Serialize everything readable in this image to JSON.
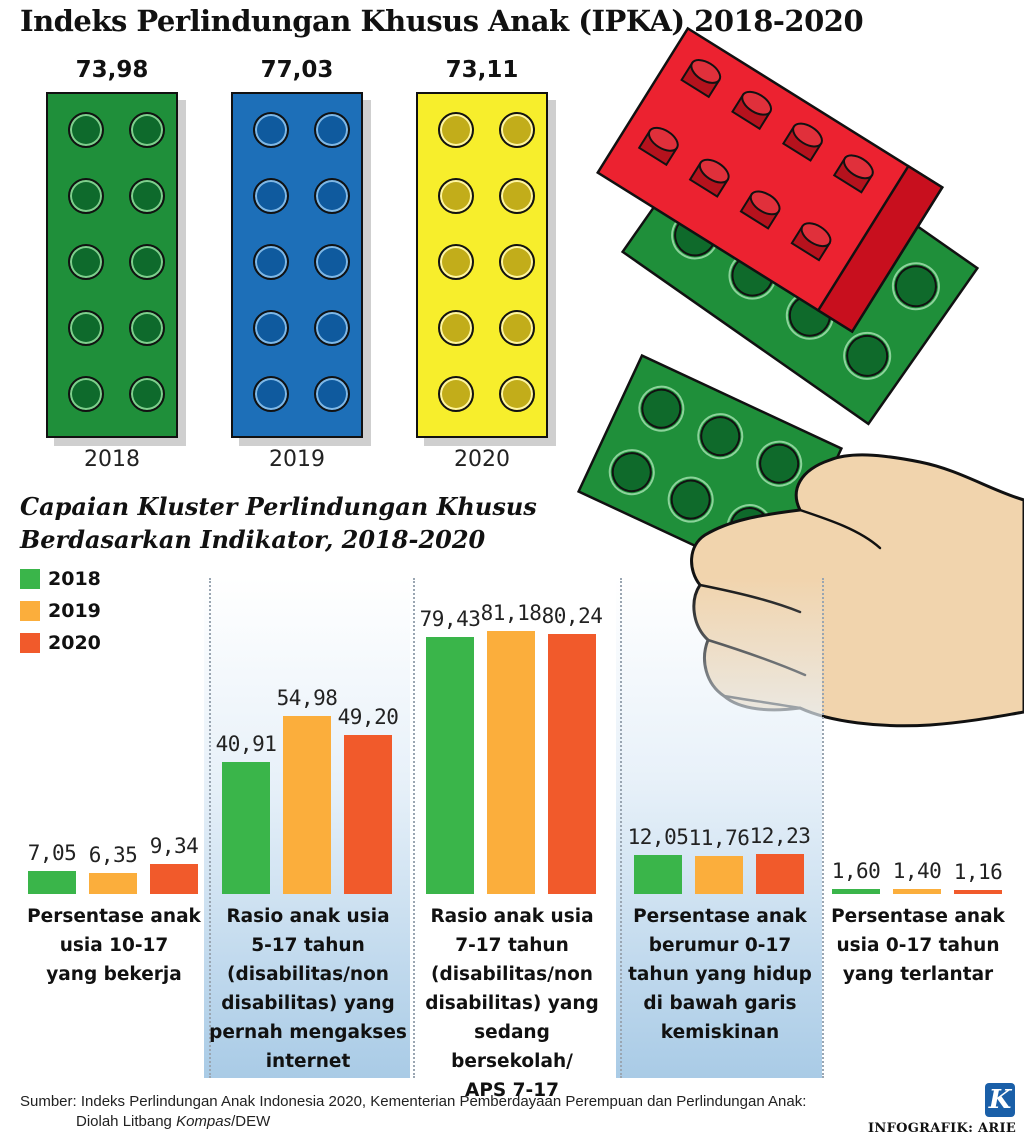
{
  "title": "Indeks Perlindungan Khusus Anak (IPKA) 2018-2020",
  "colors": {
    "brick_green": "#1f8f3a",
    "brick_blue": "#1d6fb8",
    "brick_yellow": "#f7ee2c",
    "bar_2018": "#3ab54a",
    "bar_2019": "#fbae3c",
    "bar_2020": "#f15a2b",
    "panel_blue": "#a9cbe6"
  },
  "chart_data": [
    {
      "type": "bar",
      "title": "Indeks Perlindungan Khusus Anak (IPKA) 2018-2020",
      "categories": [
        "2018",
        "2019",
        "2020"
      ],
      "values": [
        73.98,
        77.03,
        73.11
      ],
      "value_labels": [
        "73,98",
        "77,03",
        "73,11"
      ],
      "xlabel": "",
      "ylabel": ""
    },
    {
      "type": "bar",
      "title": "Capaian Kluster Perlindungan Khusus Berdasarkan Indikator, 2018-2020",
      "title_line1": "Capaian Kluster Perlindungan Khusus",
      "title_line2": "Berdasarkan Indikator, 2018-2020",
      "legend": [
        "2018",
        "2019",
        "2020"
      ],
      "ylim": [
        0,
        85
      ],
      "categories": [
        {
          "label_lines": [
            "Persentase anak",
            "usia 10-17",
            "yang bekerja"
          ],
          "values": [
            7.05,
            6.35,
            9.34
          ],
          "value_labels": [
            "7,05",
            "6,35",
            "9,34"
          ],
          "highlight": false
        },
        {
          "label_lines": [
            "Rasio anak usia",
            "5-17 tahun",
            "(disabilitas/non",
            "disabilitas) yang",
            "pernah mengakses",
            "internet"
          ],
          "values": [
            40.91,
            54.98,
            49.2
          ],
          "value_labels": [
            "40,91",
            "54,98",
            "49,20"
          ],
          "highlight": true
        },
        {
          "label_lines": [
            "Rasio anak usia",
            "7-17 tahun",
            "(disabilitas/non",
            "disabilitas) yang",
            "sedang bersekolah/",
            "APS 7-17"
          ],
          "values": [
            79.43,
            81.18,
            80.24
          ],
          "value_labels": [
            "79,43",
            "81,18",
            "80,24"
          ],
          "highlight": false
        },
        {
          "label_lines": [
            "Persentase anak",
            "berumur 0-17",
            "tahun yang hidup",
            "di bawah garis",
            "kemiskinan"
          ],
          "values": [
            12.05,
            11.76,
            12.23
          ],
          "value_labels": [
            "12,05",
            "11,76",
            "12,23"
          ],
          "highlight": true
        },
        {
          "label_lines": [
            "Persentase anak",
            "usia 0-17 tahun",
            "yang terlantar"
          ],
          "values": [
            1.6,
            1.4,
            1.16
          ],
          "value_labels": [
            "1,60",
            "1,40",
            "1,16"
          ],
          "highlight": false
        }
      ]
    }
  ],
  "source": {
    "line1": "Sumber: Indeks Perlindungan Anak Indonesia 2020, Kementerian Pemberdayaan Perempuan dan Perlindungan Anak:",
    "line2_pre": "Diolah Litbang ",
    "line2_italic": "Kompas",
    "line2_post": "/DEW"
  },
  "logo_letter": "K",
  "credit": "INFOGRAFIK: ARIE"
}
